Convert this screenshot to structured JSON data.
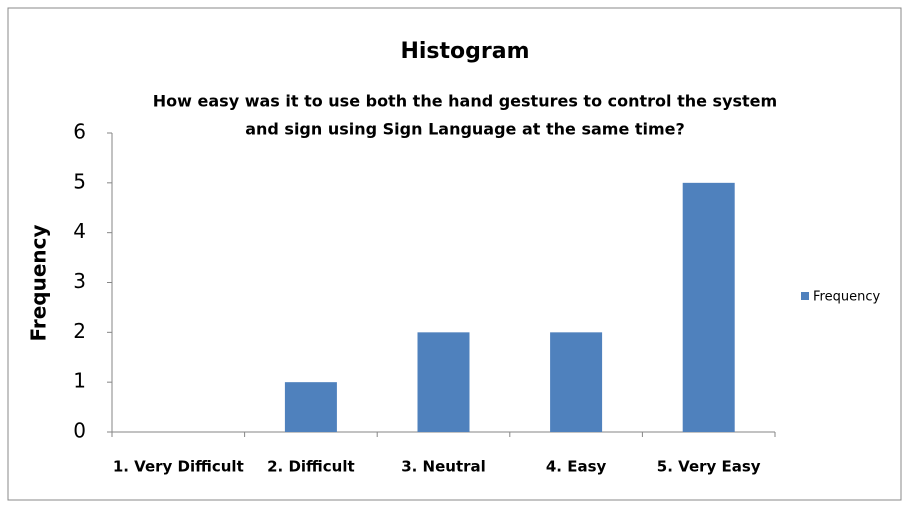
{
  "chart_data": {
    "type": "bar",
    "title": "Histogram",
    "subtitle": [
      "How easy was it to use both the hand gestures to control the system",
      "and sign using Sign Language at the same time?"
    ],
    "y_label": "Frequency",
    "categories": [
      "1. Very Difficult",
      "2. Difficult",
      "3. Neutral",
      "4. Easy",
      "5. Very Easy"
    ],
    "series": [
      {
        "name": "Frequency",
        "color": "#4f81bd",
        "values": [
          0,
          1,
          2,
          2,
          5
        ]
      }
    ],
    "ylim": [
      0,
      6
    ],
    "yticks": [
      0,
      1,
      2,
      3,
      4,
      5,
      6
    ],
    "grid": false,
    "legend": "right"
  }
}
